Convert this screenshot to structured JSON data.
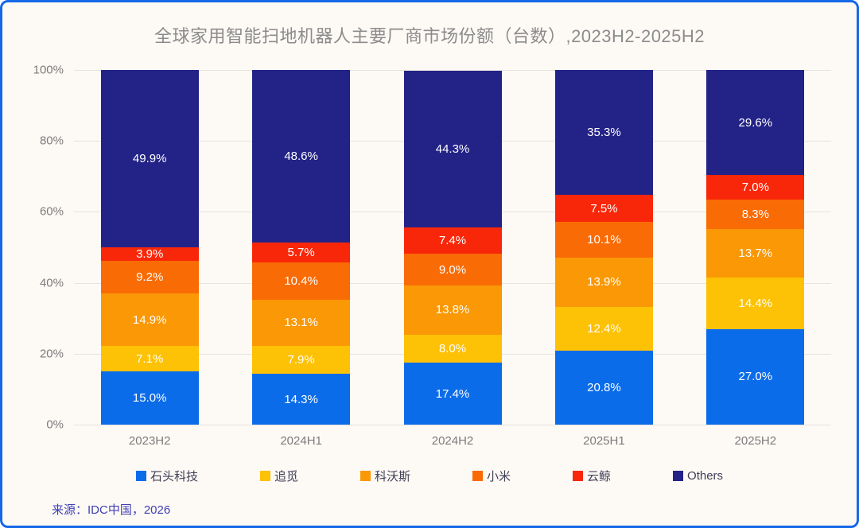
{
  "chart_data": {
    "type": "bar",
    "stacked": true,
    "title": "全球家用智能扫地机器人主要厂商市场份额（台数）,2023H2-2025H2",
    "categories": [
      "2023H2",
      "2024H1",
      "2024H2",
      "2025H1",
      "2025H2"
    ],
    "series": [
      {
        "id": "roborock",
        "name": "石头科技",
        "color": "#0b6cea",
        "values": [
          15.0,
          14.3,
          17.4,
          20.8,
          27.0
        ]
      },
      {
        "id": "dreame",
        "name": "追觅",
        "color": "#fdc105",
        "values": [
          7.1,
          7.9,
          8.0,
          12.4,
          14.4
        ]
      },
      {
        "id": "ecovacs",
        "name": "科沃斯",
        "color": "#fa9805",
        "values": [
          14.9,
          13.1,
          13.8,
          13.9,
          13.7
        ]
      },
      {
        "id": "xiaomi",
        "name": "小米",
        "color": "#f96b05",
        "values": [
          9.2,
          10.4,
          9.0,
          10.1,
          8.3
        ]
      },
      {
        "id": "narwal",
        "name": "云鲸",
        "color": "#f9270a",
        "values": [
          3.9,
          5.7,
          7.4,
          7.5,
          7.0
        ]
      },
      {
        "id": "others",
        "name": "Others",
        "color": "#232387",
        "values": [
          49.9,
          48.6,
          44.3,
          35.3,
          29.6
        ]
      }
    ],
    "y_ticks": [
      "100%",
      "80%",
      "60%",
      "40%",
      "20%",
      "0%"
    ],
    "ylim": [
      0,
      100
    ],
    "grid": true,
    "legend_position": "bottom",
    "data_label_format": "{value}%",
    "data_label_color": "#ffffff"
  },
  "source_note": "来源：IDC中国，2026",
  "colors": {
    "card_border": "#1568e8",
    "card_background": "#fdf9f5",
    "gridline": "#e6e3df",
    "title_text": "#8c8c8c",
    "axis_text": "#7c7c7c",
    "legend_text": "#3f3f55",
    "source_text": "#4040b4"
  }
}
